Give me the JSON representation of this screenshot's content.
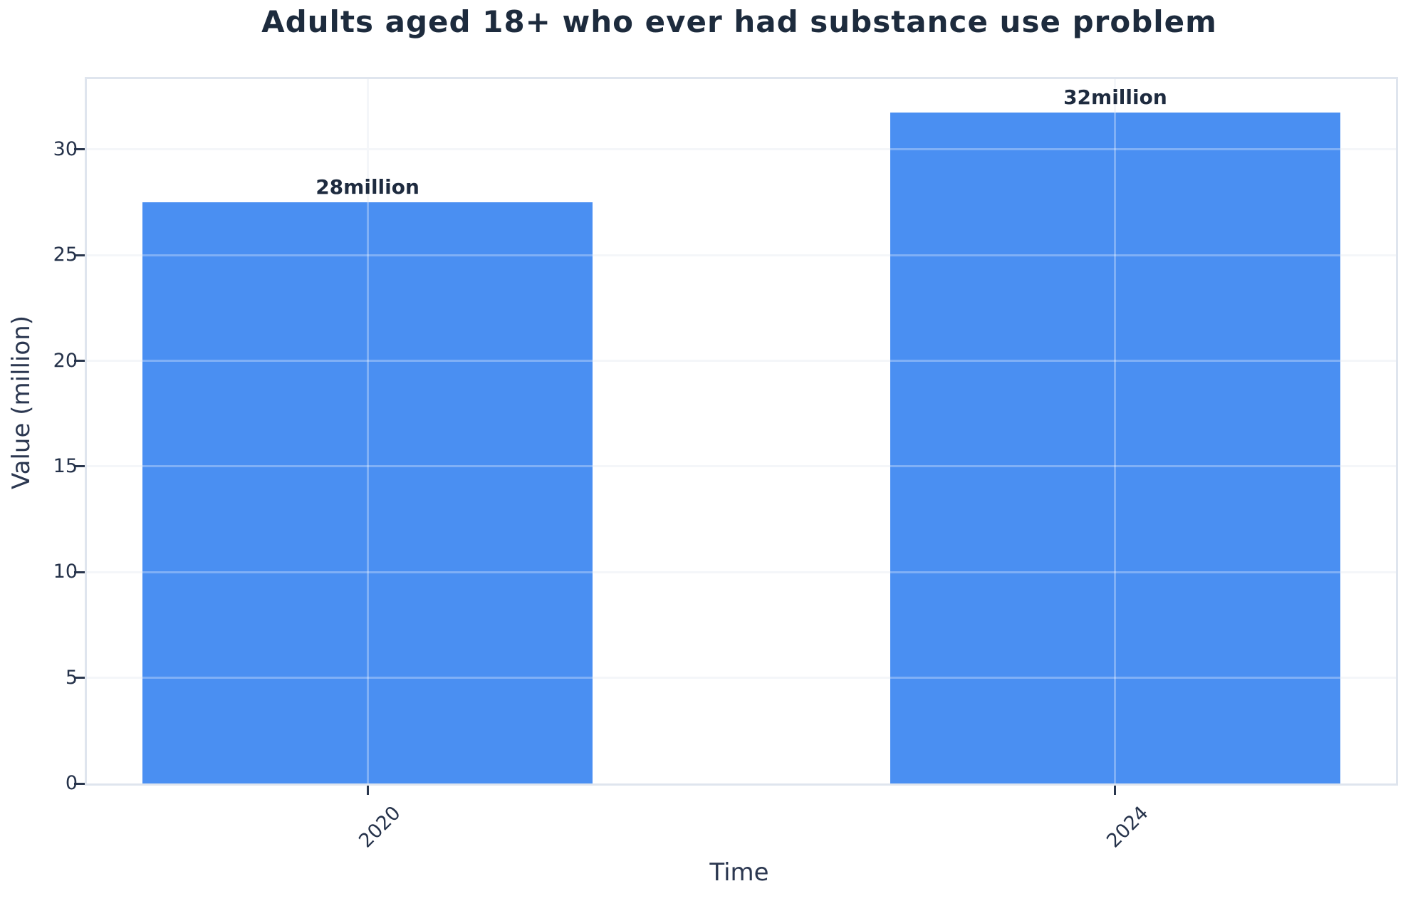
{
  "chart_data": {
    "type": "bar",
    "title": "Adults aged 18+ who ever had substance use problem",
    "xlabel": "Time",
    "ylabel": "Value (million)",
    "categories": [
      "2020",
      "2024"
    ],
    "values": [
      28,
      32
    ],
    "bar_value_labels": [
      "28million",
      "32million"
    ],
    "plotted_values": [
      27.5,
      31.75
    ],
    "ylim": [
      0,
      33.33
    ],
    "yticks": [
      0,
      5,
      10,
      15,
      20,
      25,
      30
    ],
    "grid": true,
    "legend_position": "none",
    "colors": {
      "bar": "#4a8ff2",
      "grid": "#f4f6f9",
      "grid_on_bar": "rgba(255,255,255,0.30)",
      "spine": "#dfe5ee",
      "tick_mark": "#2a374e",
      "tick_text": "#25324a",
      "title_text": "#1d2b3d"
    }
  }
}
